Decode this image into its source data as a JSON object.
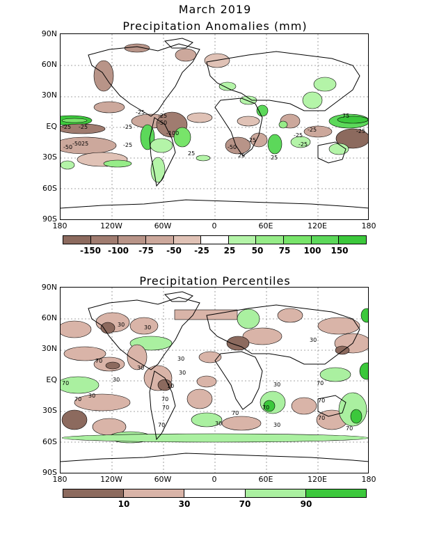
{
  "header": {
    "title": "March 2019"
  },
  "top_panel": {
    "title": "Precipitation Anomalies (mm)",
    "lat_labels": [
      "90N",
      "60N",
      "30N",
      "EQ",
      "30S",
      "60S",
      "90S"
    ],
    "lon_labels": [
      "180",
      "120W",
      "60W",
      "0",
      "60E",
      "120E",
      "180"
    ],
    "colorbar": {
      "colors": [
        "#8c6a5e",
        "#a07c70",
        "#b89488",
        "#cca89c",
        "#e0c2b6",
        "#ffffff",
        "#b4f4a8",
        "#96ec88",
        "#78e46a",
        "#5cd85a",
        "#3cc83c"
      ],
      "labels": [
        "-150",
        "-100",
        "-75",
        "-50",
        "-25",
        "25",
        "50",
        "75",
        "100",
        "150"
      ]
    },
    "contour_labels": [
      "-25",
      "-50",
      "-100",
      "-25",
      "-50",
      "-25",
      "-25",
      "-25",
      "25",
      "25",
      "-25",
      "-50",
      "25",
      "25",
      "-25",
      "75",
      "-25",
      "-25",
      "-25",
      "-50",
      "-25"
    ]
  },
  "bottom_panel": {
    "title": "Precipitation Percentiles",
    "lat_labels": [
      "90N",
      "60N",
      "30N",
      "EQ",
      "30S",
      "60S",
      "90S"
    ],
    "lon_labels": [
      "180",
      "120W",
      "60W",
      "0",
      "60E",
      "120E",
      "180"
    ],
    "colorbar": {
      "colors": [
        "#8c6a5e",
        "#d9b4a8",
        "#ffffff",
        "#aaf0a0",
        "#3cc83c"
      ],
      "labels": [
        "10",
        "30",
        "70",
        "90"
      ]
    },
    "contour_labels": [
      "30",
      "30",
      "70",
      "30",
      "30",
      "10",
      "30",
      "70",
      "70",
      "30",
      "70",
      "70",
      "70",
      "30",
      "70",
      "30",
      "70",
      "30",
      "70",
      "70",
      "30",
      "70",
      "30",
      "70"
    ]
  },
  "colors": {
    "land_outline": "#000000",
    "grid": "#888888",
    "dry": "#b89488",
    "wet": "#96ec88"
  }
}
